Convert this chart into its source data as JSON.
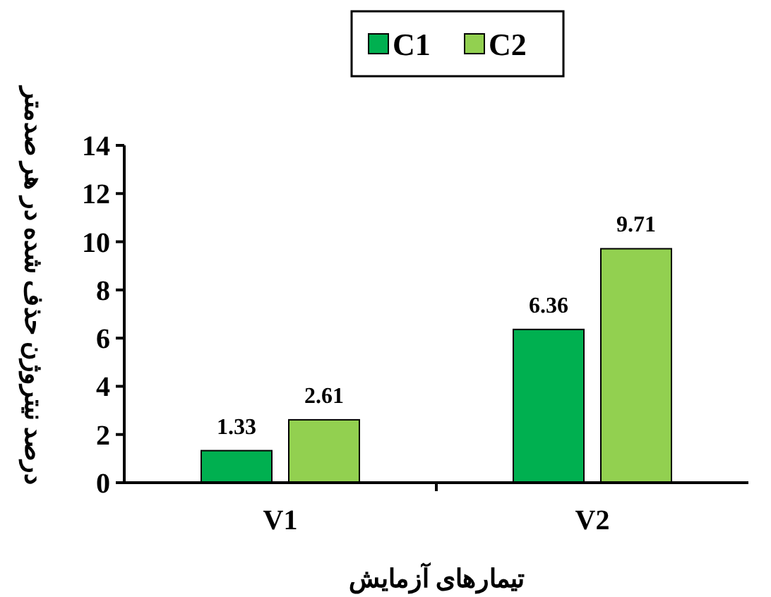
{
  "chart_data": {
    "type": "bar",
    "xlabel": "تیمارهای آزمایش",
    "ylabel": "درصد نیتروژن حذف شده در هر صدمتر",
    "categories": [
      "V1",
      "V2"
    ],
    "series": [
      {
        "name": "C1",
        "color": "#00b050",
        "values": [
          1.33,
          6.36
        ]
      },
      {
        "name": "C2",
        "color": "#92d050",
        "values": [
          2.61,
          9.71
        ]
      }
    ],
    "ylim": [
      0,
      14
    ],
    "yticks": [
      0,
      2,
      4,
      6,
      8,
      10,
      12,
      14
    ],
    "data_labels": true,
    "legend": "top",
    "grid": false
  }
}
